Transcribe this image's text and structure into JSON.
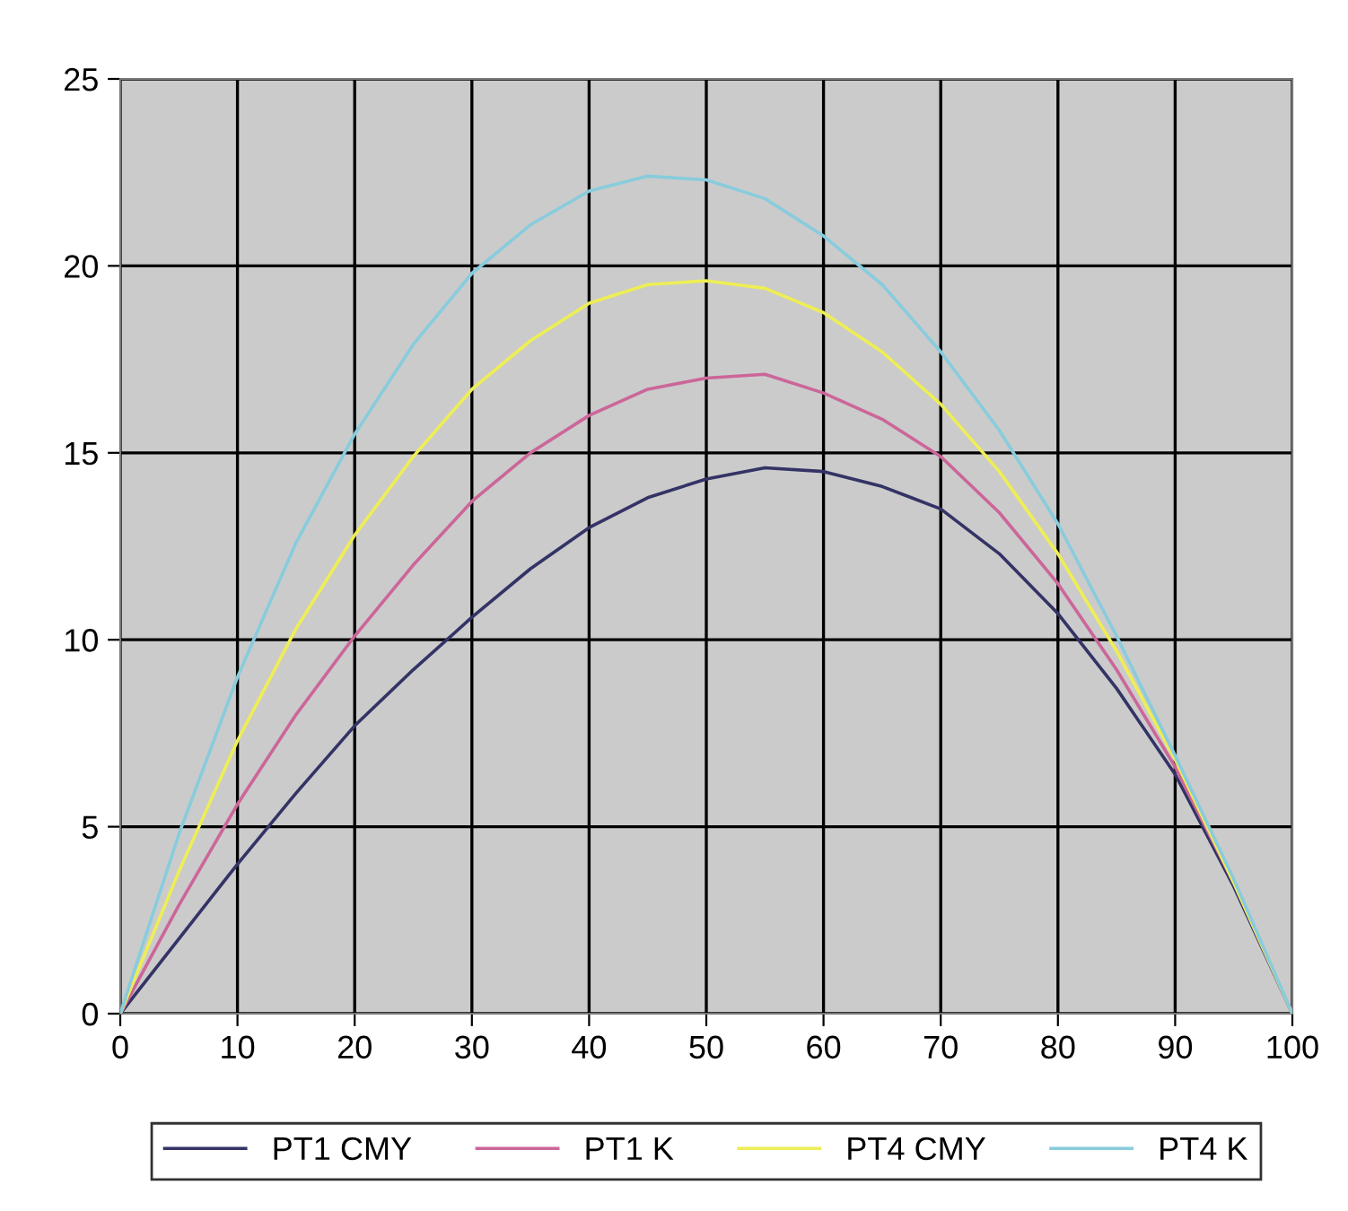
{
  "chart_data": {
    "type": "line",
    "x": [
      0,
      5,
      10,
      15,
      20,
      25,
      30,
      35,
      40,
      45,
      50,
      55,
      60,
      65,
      70,
      75,
      80,
      85,
      90,
      95,
      100
    ],
    "series": [
      {
        "name": "PT1 CMY",
        "color": "#333366",
        "values": [
          0,
          2.0,
          4.0,
          5.9,
          7.7,
          9.2,
          10.6,
          11.9,
          13.0,
          13.8,
          14.3,
          14.6,
          14.5,
          14.1,
          13.5,
          12.3,
          10.7,
          8.7,
          6.4,
          3.4,
          0
        ]
      },
      {
        "name": "PT1 K",
        "color": "#cc6699",
        "values": [
          0,
          2.9,
          5.6,
          8.0,
          10.1,
          12.0,
          13.7,
          15.0,
          16.0,
          16.7,
          17.0,
          17.1,
          16.6,
          15.9,
          14.9,
          13.4,
          11.5,
          9.2,
          6.6,
          3.5,
          0
        ]
      },
      {
        "name": "PT4 CMY",
        "color": "#eeee55",
        "values": [
          0,
          3.8,
          7.3,
          10.3,
          12.8,
          14.9,
          16.7,
          18.0,
          19.0,
          19.5,
          19.6,
          19.4,
          18.75,
          17.7,
          16.3,
          14.5,
          12.3,
          9.7,
          6.8,
          3.5,
          0
        ]
      },
      {
        "name": "PT4 K",
        "color": "#88ccdd",
        "values": [
          0,
          4.8,
          9.0,
          12.6,
          15.5,
          17.9,
          19.8,
          21.1,
          22.0,
          22.4,
          22.3,
          21.8,
          20.8,
          19.5,
          17.7,
          15.6,
          13.1,
          10.1,
          6.9,
          3.6,
          0
        ]
      }
    ],
    "xlim": [
      0,
      100
    ],
    "xticks": [
      0,
      10,
      20,
      30,
      40,
      50,
      60,
      70,
      80,
      90,
      100
    ],
    "ylim": [
      0,
      25
    ],
    "yticks": [
      0,
      5,
      10,
      15,
      20,
      25
    ],
    "grid": true,
    "legend": "bottom",
    "marker": "none",
    "line_style": "solid"
  }
}
